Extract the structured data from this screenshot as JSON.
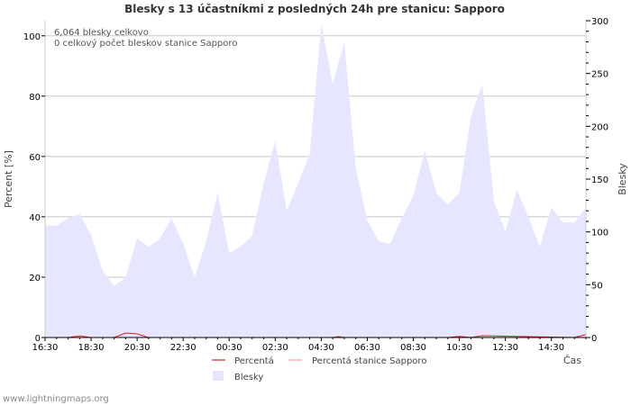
{
  "chart_data": {
    "type": "area",
    "title": "Blesky s 13 účastníkmi z posledných 24h pre stanicu: Sapporo",
    "xlabel": "Čas",
    "ylabel_left": "Percent   [%]",
    "ylabel_right": "Blesky",
    "x_ticks": [
      "16:30",
      "18:30",
      "20:30",
      "22:30",
      "00:30",
      "02:30",
      "04:30",
      "06:30",
      "08:30",
      "10:30",
      "12:30",
      "14:30"
    ],
    "y_left_ticks": [
      0,
      20,
      40,
      60,
      80,
      100
    ],
    "y_right_ticks": [
      0,
      50,
      100,
      150,
      200,
      250,
      300
    ],
    "y_left_range": [
      0,
      105
    ],
    "y_right_range": [
      0,
      300
    ],
    "x_range_hours": [
      0,
      23.5
    ],
    "grid": true,
    "annotations": [
      "6,064 blesky celkovo",
      "0 celkový počet bleskov stanice Sapporo"
    ],
    "series": [
      {
        "name": "Percentá",
        "axis": "left",
        "color": "#dd2222",
        "x": [
          0,
          1,
          1.5,
          2,
          2.5,
          3,
          3.5,
          4,
          4.5,
          5,
          12.5,
          12.75,
          13,
          17.5,
          18,
          18.5,
          19,
          23,
          23.5
        ],
        "values": [
          0,
          0,
          0.5,
          0,
          0,
          0,
          1.5,
          1.2,
          0,
          0,
          0,
          0.3,
          0,
          0,
          0.4,
          0,
          0.6,
          0,
          1
        ]
      },
      {
        "name": "Percentá stanice Sapporo",
        "axis": "left",
        "color": "#f4a0a0",
        "x": [
          0,
          23.5
        ],
        "values": [
          0,
          0
        ]
      },
      {
        "name": "Blesky",
        "axis": "right",
        "color": "#e6e6ff",
        "x": [
          0,
          0.5,
          1,
          1.5,
          2,
          2.5,
          3,
          3.5,
          4,
          4.5,
          5,
          5.5,
          6,
          6.5,
          7,
          7.5,
          8,
          8.5,
          9,
          9.5,
          10,
          10.5,
          11,
          11.5,
          12,
          12.5,
          13,
          13.5,
          14,
          14.5,
          15,
          15.5,
          16,
          16.5,
          17,
          17.5,
          18,
          18.5,
          19,
          19.5,
          20,
          20.5,
          21,
          21.5,
          22,
          22.5,
          23,
          23.5
        ],
        "values": [
          106,
          106,
          113,
          117,
          97,
          63,
          49,
          57,
          94,
          86,
          94,
          113,
          89,
          57,
          91,
          137,
          80,
          86,
          97,
          146,
          186,
          120,
          146,
          174,
          297,
          240,
          280,
          160,
          111,
          91,
          89,
          113,
          134,
          177,
          137,
          126,
          137,
          209,
          240,
          129,
          100,
          140,
          114,
          86,
          123,
          109,
          109,
          123
        ]
      }
    ]
  },
  "legend": {
    "percent": "Percentá",
    "station": "Percentá stanice Sapporo",
    "strikes": "Blesky"
  },
  "watermark": "www.lightningmaps.org"
}
